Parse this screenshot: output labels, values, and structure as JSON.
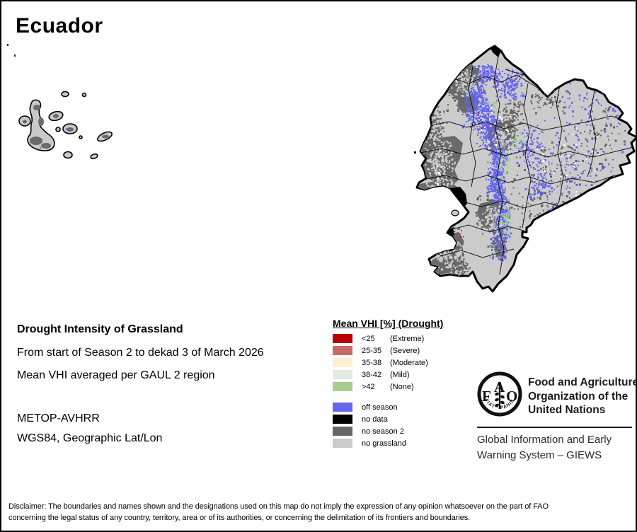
{
  "title": "Ecuador",
  "description": {
    "heading": "Drought Intensity of Grassland",
    "period": "From start of Season 2 to dekad 3 of March 2026",
    "method": "Mean VHI averaged per GAUL 2 region",
    "sensor": "METOP-AVHRR",
    "projection": "WGS84, Geographic Lat/Lon"
  },
  "legend": {
    "title": "Mean VHI [%] (Drought)",
    "classes": [
      {
        "range": "<25",
        "label": "(Extreme)",
        "color": "#bb0000"
      },
      {
        "range": "25-35",
        "label": "(Severe)",
        "color": "#c86a6a"
      },
      {
        "range": "35-38",
        "label": "(Moderate)",
        "color": "#fdefce"
      },
      {
        "range": "38-42",
        "label": "(Mild)",
        "color": "#e0edde"
      },
      {
        "range": ">42",
        "label": "(None)",
        "color": "#a7cd90"
      }
    ],
    "statuses": [
      {
        "label": "off season",
        "color": "#6666f2"
      },
      {
        "label": "no data",
        "color": "#000000"
      },
      {
        "label": "no season 2",
        "color": "#666666"
      },
      {
        "label": "no grassland",
        "color": "#cbcbcb"
      }
    ]
  },
  "footer": {
    "fao_letters": [
      "F",
      "A",
      "O"
    ],
    "fao_motto": "FIAT · PANIS",
    "org_lines": [
      "Food and Agriculture",
      "Organization of the",
      "United Nations"
    ],
    "giews_lines": [
      "Global Information and Early",
      "Warning System – GIEWS"
    ]
  },
  "disclaimer": {
    "line1": "Disclaimer: The boundaries and names shown and the designations used on this map do not imply the expression of any opinion whatsoever on the part of FAO",
    "line2": "concerning the legal status of any country, territory, area or of its authorities, or concerning the delimitation of its frontiers and boundaries."
  }
}
